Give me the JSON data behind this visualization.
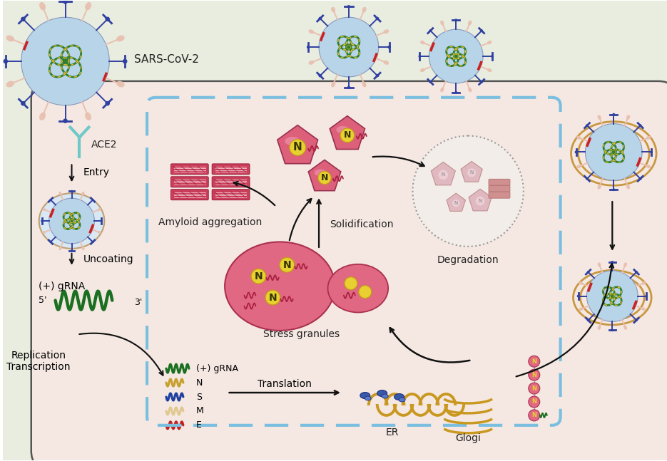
{
  "bg_outer": "#e8ede0",
  "bg_cell": "#f5e8e2",
  "cell_border": "#555555",
  "dashed_box_color": "#7bbfe0",
  "labels": {
    "sars_cov2": "SARS-CoV-2",
    "ace2": "ACE2",
    "entry": "Entry",
    "uncoating": "Uncoating",
    "plus_grna": "(+) gRNA",
    "five_prime": "5'",
    "three_prime": "3'",
    "replication": "Replication\nTranscription",
    "amyloid": "Amyloid aggregation",
    "stress_granules": "Stress granules",
    "solidification": "Solidification",
    "degradation": "Degradation",
    "translation": "Translation",
    "er": "ER",
    "glogi": "Glogi",
    "plus_grna_legend": "(+) gRNA",
    "n_label": "N",
    "s_label": "S",
    "m_label": "M",
    "e_label": "E"
  },
  "colors": {
    "virus_body": "#b8d4e8",
    "virus_body_edge": "#8899bb",
    "virus_spike_blue": "#3040a0",
    "virus_spike_pink": "#e8c0b0",
    "virus_rna_green": "#2e7d32",
    "virus_rna_yellow": "#e8b820",
    "ace2_color": "#70c8c8",
    "grna_color": "#1a7020",
    "arrow_color": "#111111",
    "sg_fill": "#dd6080",
    "sg_edge": "#aa3050",
    "amyloid_fill": "#c83050",
    "amyloid_edge": "#901030",
    "n_protein_yellow": "#e8d030",
    "deg_fill": "#f0ece8",
    "deg_edge": "#888888",
    "deg_piece_fill": "#e0b8c0",
    "er_color": "#c89820",
    "n_rna_color": "#c8a030",
    "s_rna_color": "#2040a0",
    "m_rna_color": "#e0c890",
    "e_rna_color": "#c02020",
    "text_color": "#222222",
    "vesicle_ring": "#c89840",
    "red_accent": "#cc2020",
    "endo_fill": "#d8e8f4",
    "endo_edge": "#c0a070"
  }
}
